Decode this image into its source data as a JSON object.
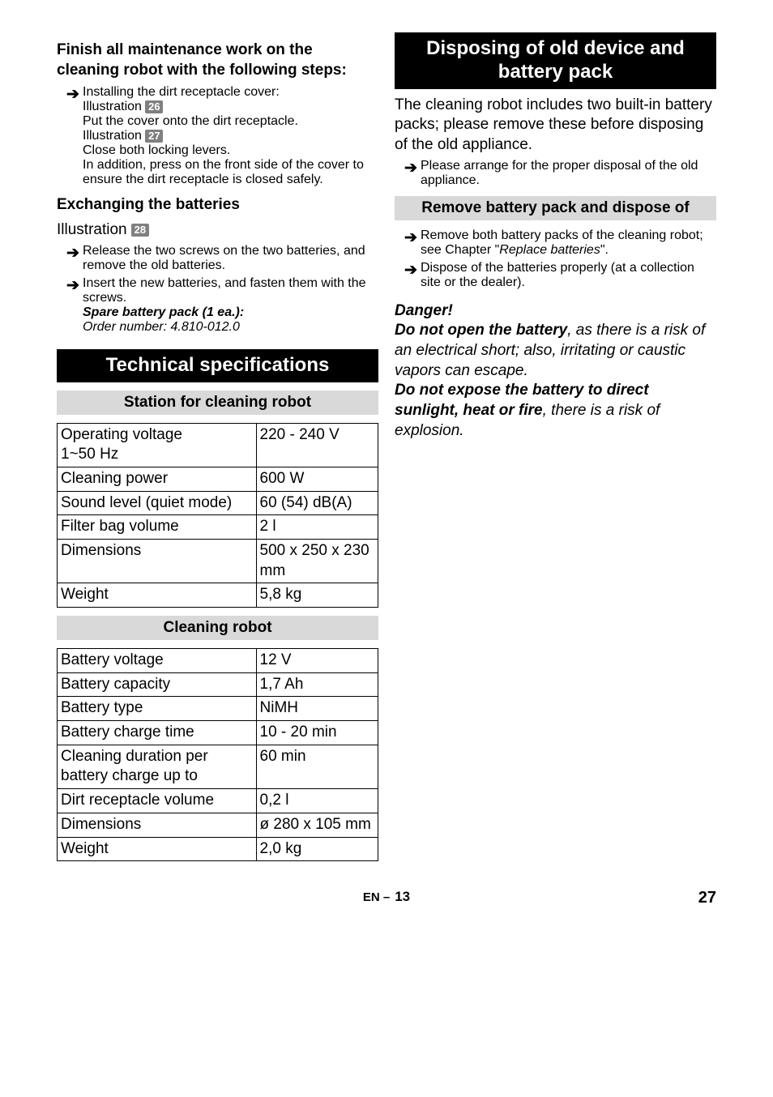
{
  "left": {
    "finish_heading": "Finish all maintenance work on the cleaning robot with the following steps:",
    "install_step": "Installing the dirt receptacle cover:",
    "illus_label": "Illustration",
    "illus26": "26",
    "put_cover": "Put the cover onto the dirt receptacle.",
    "illus27": "27",
    "close_lock": "Close both locking levers.",
    "press_front": "In addition, press on the front side of the cover to ensure the dirt receptacle is closed safely.",
    "exch_heading": "Exchanging the batteries",
    "illus28": "28",
    "release": "Release the two screws on the two batteries, and remove the old batteries.",
    "insert": "Insert the new batteries, and fasten them with the screws.",
    "spare_label": "Spare battery pack (1 ea.):",
    "order_label": "Order number: 4.810-012.0",
    "tech_heading": "Technical specifications",
    "station_heading": "Station for cleaning robot",
    "table_station": [
      [
        "Operating voltage\n1~50 Hz",
        "220 - 240 V"
      ],
      [
        "Cleaning power",
        "600 W"
      ],
      [
        "Sound level (quiet mode)",
        "60 (54) dB(A)"
      ],
      [
        "Filter bag volume",
        "2 l"
      ],
      [
        "Dimensions",
        "500 x 250 x 230 mm"
      ],
      [
        "Weight",
        "5,8 kg"
      ]
    ],
    "robot_heading": "Cleaning robot",
    "table_robot": [
      [
        "Battery voltage",
        "12 V"
      ],
      [
        "Battery capacity",
        "1,7 Ah"
      ],
      [
        "Battery type",
        "NiMH"
      ],
      [
        "Battery charge time",
        "10 - 20 min"
      ],
      [
        "Cleaning duration per battery charge up to",
        "60 min"
      ],
      [
        "Dirt receptacle volume",
        "0,2 l"
      ],
      [
        "Dimensions",
        "ø 280 x 105 mm"
      ],
      [
        "Weight",
        "2,0 kg"
      ]
    ]
  },
  "right": {
    "dispose_heading": "Disposing of old device and battery pack",
    "intro": "The cleaning robot includes two built-in battery packs; please remove these before disposing of the old appliance.",
    "please": "Please arrange for the proper disposal of the old appliance.",
    "remove_heading": "Remove battery pack and dispose of",
    "remove1": "Remove both battery packs of the cleaning robot; see Chapter \"",
    "remove1_it": "Replace batteries",
    "remove1_end": "\".",
    "remove2": "Dispose of the batteries properly (at a collection site or the dealer).",
    "danger": "Danger!",
    "donot1a": "Do not open the battery",
    "donot1b": ", as there is a risk of an electrical short; also, irritating or caustic vapors can escape.",
    "donot2a": "Do not expose the battery to direct sunlight, heat or fire",
    "donot2b": ", there is a risk of explosion."
  },
  "footer": {
    "lang": "EN –",
    "inpage": "13",
    "abs": "27"
  }
}
